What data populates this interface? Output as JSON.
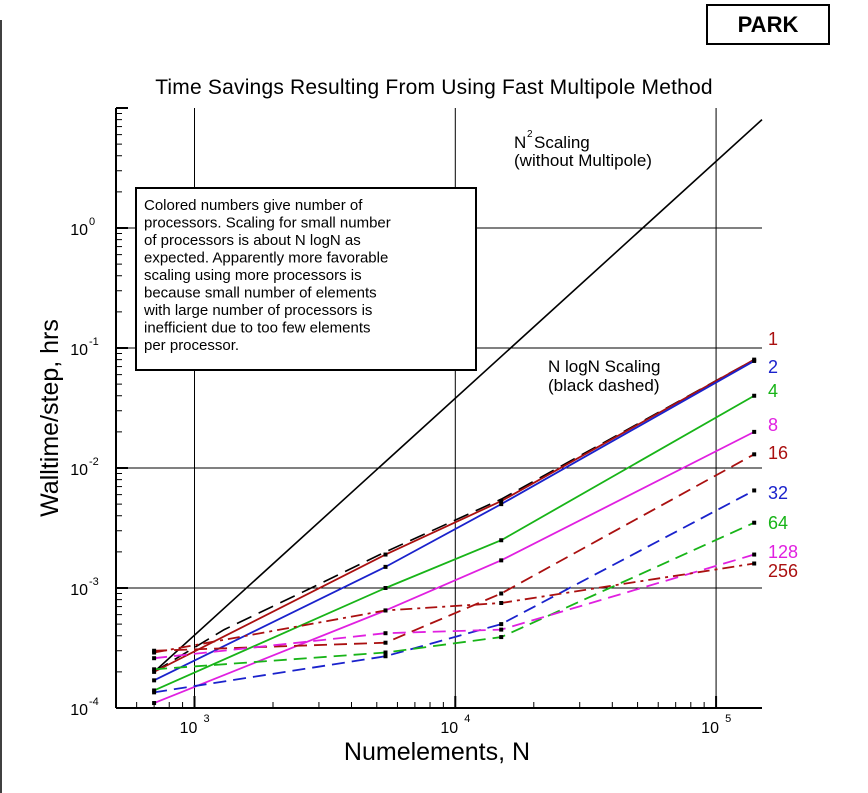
{
  "badge": "PARK",
  "chart_data": {
    "type": "line",
    "title": "Time Savings Resulting From Using Fast Multipole Method",
    "xlabel": "Numelements, N",
    "ylabel": "Walltime/step, hrs",
    "xscale": "log",
    "yscale": "log",
    "xlim": [
      500,
      150000
    ],
    "ylim": [
      0.0001,
      10
    ],
    "xticks": [
      {
        "value": 1000,
        "base": "10",
        "exp": "3"
      },
      {
        "value": 10000,
        "base": "10",
        "exp": "4"
      },
      {
        "value": 100000,
        "base": "10",
        "exp": "5"
      }
    ],
    "yticks": [
      {
        "value": 0.0001,
        "base": "10",
        "exp": "-4"
      },
      {
        "value": 0.001,
        "base": "10",
        "exp": "-3"
      },
      {
        "value": 0.01,
        "base": "10",
        "exp": "-2"
      },
      {
        "value": 0.1,
        "base": "10",
        "exp": "-1"
      },
      {
        "value": 1,
        "base": "10",
        "exp": "0"
      }
    ],
    "grid": true,
    "reference_lines": [
      {
        "name": "N2 Scaling",
        "style": "solid",
        "color": "#000000",
        "x": [
          700,
          150000
        ],
        "y": [
          0.0002,
          8
        ]
      },
      {
        "name": "N logN Scaling",
        "style": "dashed",
        "color": "#000000",
        "x": [
          700,
          1300,
          2800,
          5400,
          15000,
          140000
        ],
        "y": [
          0.0002,
          0.00045,
          0.001,
          0.002,
          0.0055,
          0.08
        ]
      }
    ],
    "series": [
      {
        "name": "1",
        "color": "#aa1010",
        "style": "solid",
        "x": [
          700,
          5400,
          15000,
          140000
        ],
        "y": [
          0.0002,
          0.0019,
          0.0053,
          0.08
        ]
      },
      {
        "name": "2",
        "color": "#1a22cc",
        "style": "solid",
        "x": [
          700,
          5400,
          15000,
          140000
        ],
        "y": [
          0.00017,
          0.0015,
          0.005,
          0.078
        ]
      },
      {
        "name": "4",
        "color": "#18b418",
        "style": "solid",
        "x": [
          700,
          5400,
          15000,
          140000
        ],
        "y": [
          0.00014,
          0.001,
          0.0025,
          0.04
        ]
      },
      {
        "name": "8",
        "color": "#e020e0",
        "style": "solid",
        "x": [
          700,
          5400,
          15000,
          140000
        ],
        "y": [
          0.00011,
          0.00065,
          0.0017,
          0.02
        ]
      },
      {
        "name": "16",
        "color": "#aa1010",
        "style": "dashed",
        "x": [
          700,
          5400,
          15000,
          140000
        ],
        "y": [
          0.0003,
          0.00035,
          0.0009,
          0.013
        ]
      },
      {
        "name": "32",
        "color": "#1a22cc",
        "style": "dashed",
        "x": [
          700,
          5400,
          15000,
          140000
        ],
        "y": [
          0.000135,
          0.00027,
          0.0005,
          0.0065
        ]
      },
      {
        "name": "64",
        "color": "#18b418",
        "style": "dashed",
        "x": [
          700,
          5400,
          15000,
          140000
        ],
        "y": [
          0.00021,
          0.00029,
          0.00039,
          0.0035
        ]
      },
      {
        "name": "128",
        "color": "#e020e0",
        "style": "dashed",
        "x": [
          700,
          5400,
          15000,
          140000
        ],
        "y": [
          0.00026,
          0.00042,
          0.00045,
          0.0019
        ]
      },
      {
        "name": "256",
        "color": "#aa1010",
        "style": "dashdot",
        "x": [
          700,
          5400,
          15000,
          140000
        ],
        "y": [
          0.00029,
          0.00065,
          0.00075,
          0.0016
        ]
      }
    ],
    "annotations": {
      "n2": {
        "line1": "N",
        "sup": "2",
        "line1_rest": " Scaling",
        "line2": "(without Multipole)"
      },
      "nlogn": {
        "line1": "N logN Scaling",
        "line2": "(black dashed)"
      },
      "note": [
        "Colored numbers give number of",
        "processors. Scaling for small number",
        "of processors is about N logN as",
        "expected. Apparently more favorable",
        "scaling using more processors is",
        "because small number of elements",
        "with large number of processors is",
        "inefficient due to too few elements",
        "per processor."
      ]
    }
  }
}
